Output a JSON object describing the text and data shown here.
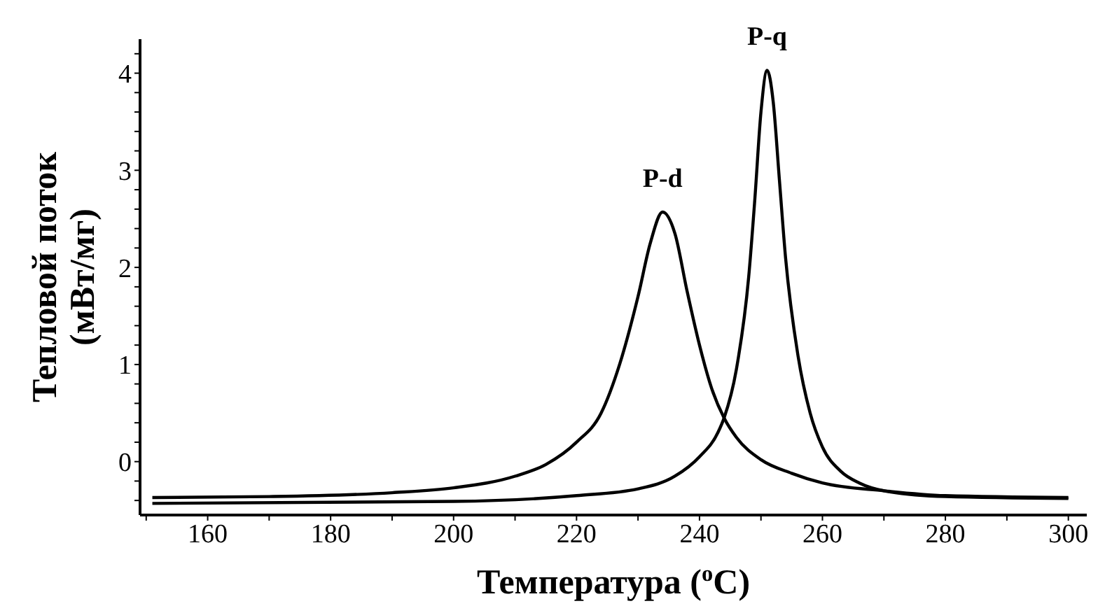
{
  "chart_data": {
    "type": "line",
    "xlabel": "Температура ($^{o}$C)",
    "ylabel": "Тепловой поток\n(мВт/мг)",
    "xlim": [
      149,
      303
    ],
    "ylim": [
      -0.55,
      4.35
    ],
    "xticks": [
      {
        "value": 150,
        "label": null
      },
      160,
      {
        "value": 170,
        "label": null
      },
      180,
      {
        "value": 190,
        "label": null
      },
      200,
      {
        "value": 210,
        "label": null
      },
      220,
      {
        "value": 230,
        "label": null
      },
      240,
      {
        "value": 250,
        "label": null
      },
      260,
      {
        "value": 270,
        "label": null
      },
      280,
      {
        "value": 290,
        "label": null
      },
      300
    ],
    "yticks": [
      {
        "value": -0.4,
        "label": null
      },
      {
        "value": -0.2,
        "label": null
      },
      0,
      {
        "value": 0.2,
        "label": null
      },
      {
        "value": 0.4,
        "label": null
      },
      {
        "value": 0.6,
        "label": null
      },
      {
        "value": 0.8,
        "label": null
      },
      1,
      {
        "value": 1.2,
        "label": null
      },
      {
        "value": 1.4,
        "label": null
      },
      {
        "value": 1.6,
        "label": null
      },
      {
        "value": 1.8,
        "label": null
      },
      2,
      {
        "value": 2.2,
        "label": null
      },
      {
        "value": 2.4,
        "label": null
      },
      {
        "value": 2.6,
        "label": null
      },
      {
        "value": 2.8,
        "label": null
      },
      3,
      {
        "value": 3.2,
        "label": null
      },
      {
        "value": 3.4,
        "label": null
      },
      {
        "value": 3.6,
        "label": null
      },
      {
        "value": 3.8,
        "label": null
      },
      4,
      {
        "value": 4.2,
        "label": null
      }
    ],
    "grid": false,
    "marker": "none",
    "line_style": "solid",
    "series": [
      {
        "color": "#000000",
        "x": [
          151,
          170,
          190,
          200,
          210,
          215,
          220,
          224,
          227,
          230,
          232,
          234,
          236,
          238,
          240,
          242,
          244,
          246,
          250,
          255,
          260,
          270,
          280,
          300
        ],
        "values": [
          -0.37,
          -0.36,
          -0.32,
          -0.27,
          -0.15,
          -0.03,
          0.2,
          0.5,
          1.0,
          1.7,
          2.25,
          2.57,
          2.35,
          1.75,
          1.2,
          0.75,
          0.45,
          0.25,
          0.02,
          -0.12,
          -0.22,
          -0.3,
          -0.35,
          -0.37
        ]
      },
      {
        "color": "#000000",
        "x": [
          151,
          200,
          220,
          230,
          236,
          240,
          243,
          244,
          246,
          248,
          249,
          250,
          251,
          252,
          253,
          254,
          256,
          258,
          260,
          263,
          266,
          270,
          280,
          300
        ],
        "values": [
          -0.43,
          -0.41,
          -0.35,
          -0.28,
          -0.15,
          0.05,
          0.3,
          0.45,
          0.95,
          1.9,
          2.7,
          3.6,
          4.03,
          3.7,
          2.9,
          2.1,
          1.1,
          0.5,
          0.15,
          -0.1,
          -0.22,
          -0.3,
          -0.36,
          -0.38
        ]
      }
    ],
    "annotations": [
      {
        "text": "P-d",
        "x": 234,
        "y": 2.57
      },
      {
        "text": "P-q",
        "x": 251,
        "y": 4.03
      }
    ]
  }
}
